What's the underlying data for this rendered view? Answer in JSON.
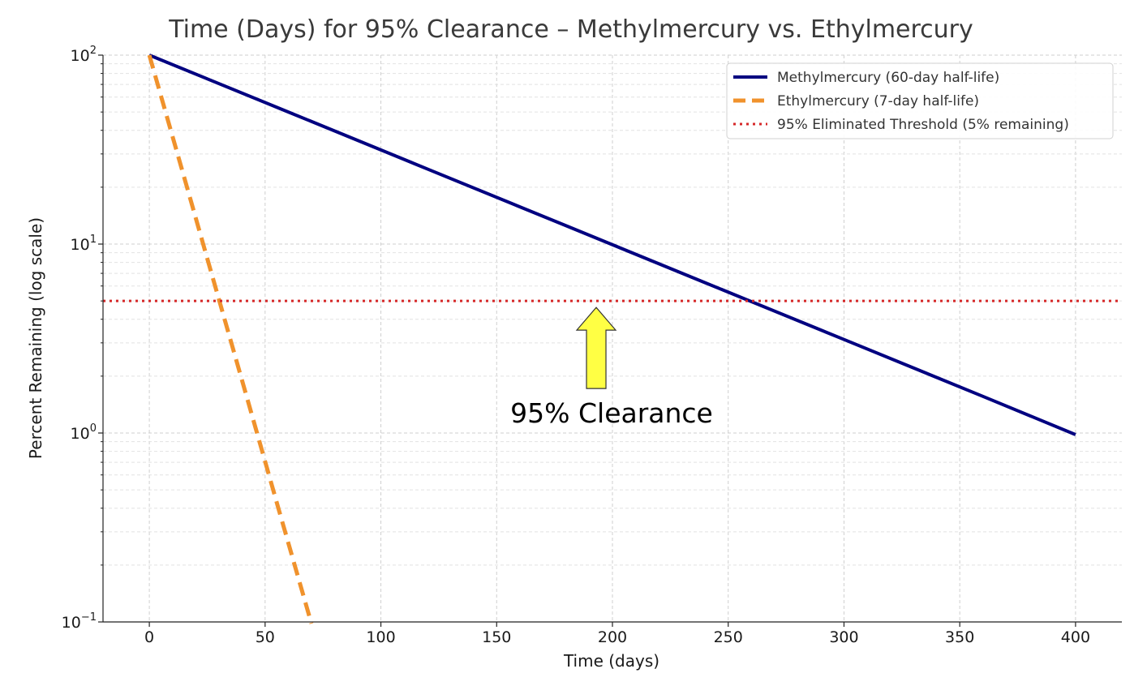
{
  "chart_data": {
    "type": "line",
    "title": "Time (Days) for 95% Clearance – Methylmercury vs. Ethylmercury",
    "xlabel": "Time (days)",
    "ylabel": "Percent Remaining (log scale)",
    "xlim": [
      -20,
      420
    ],
    "ylim": [
      0.1,
      100
    ],
    "yscale": "log",
    "grid": true,
    "legend_position": "top-right",
    "x_ticks": [
      0,
      50,
      100,
      150,
      200,
      250,
      300,
      350,
      400
    ],
    "y_ticks": [
      {
        "base": "10",
        "exp": "2",
        "value": 100
      },
      {
        "base": "10",
        "exp": "1",
        "value": 10
      },
      {
        "base": "10",
        "exp": "0",
        "value": 1
      },
      {
        "base": "10",
        "exp": "−1",
        "value": 0.1
      }
    ],
    "series": [
      {
        "name": "Methylmercury (60-day half-life)",
        "color": "#000080",
        "style": "solid",
        "x": [
          0,
          60,
          120,
          180,
          240,
          300,
          360,
          400
        ],
        "y": [
          100,
          50,
          25,
          12.5,
          6.25,
          3.125,
          1.5625,
          0.98
        ]
      },
      {
        "name": "Ethylmercury (7-day half-life)",
        "color": "#f0922c",
        "style": "dashed",
        "x": [
          0,
          14,
          28,
          42,
          56,
          70
        ],
        "y": [
          100,
          25,
          6.25,
          1.5625,
          0.39,
          0.098
        ]
      },
      {
        "name": "95% Eliminated Threshold (5% remaining)",
        "color": "#d62728",
        "style": "dotted",
        "x": [
          -20,
          420
        ],
        "y": [
          5,
          5
        ]
      }
    ],
    "annotation": {
      "text": "95% Clearance",
      "x": 193,
      "y": 5,
      "arrow_color": "#ffff44"
    }
  }
}
